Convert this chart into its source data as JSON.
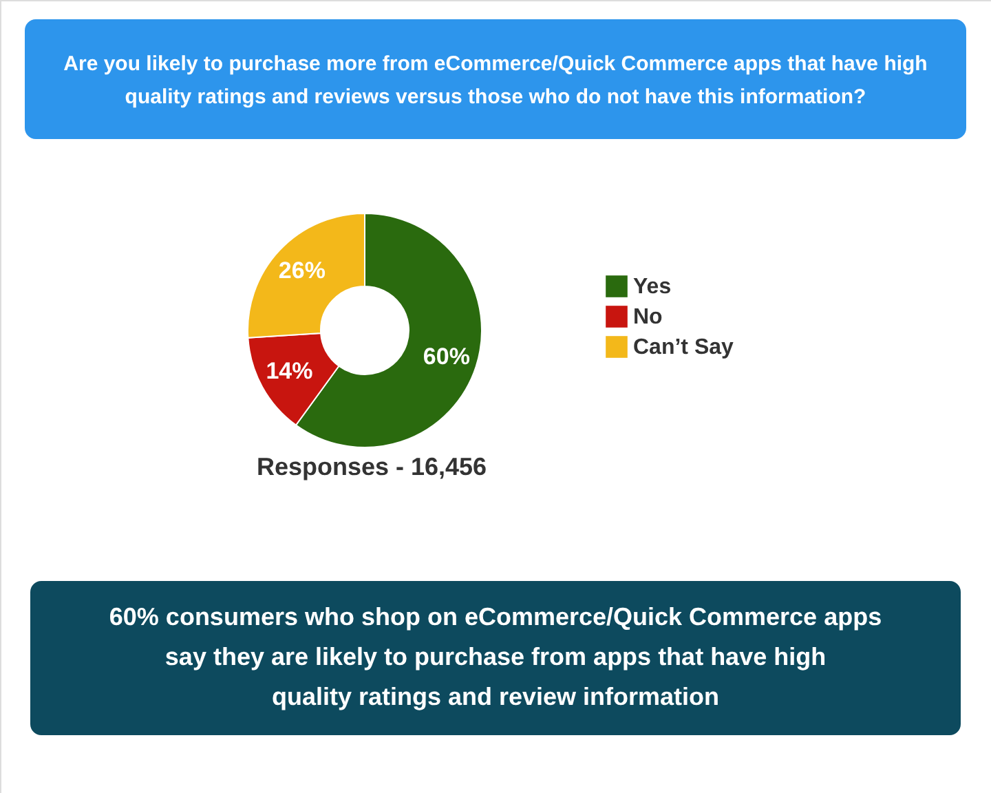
{
  "chart_data": {
    "type": "donut",
    "title": "Are you likely to purchase more from eCommerce/Quick Commerce apps that have high quality ratings and reviews versus those who do not have this information?",
    "categories": [
      "Yes",
      "No",
      "Can’t Say"
    ],
    "values": [
      60,
      14,
      26
    ],
    "value_labels": [
      "60%",
      "14%",
      "26%"
    ],
    "colors": [
      "#2a6a0e",
      "#c8150f",
      "#f3b81a"
    ],
    "legend": "right",
    "annotations": [
      "Responses - 16,456",
      "60% consumers who shop on eCommerce/Quick Commerce apps say they are likely to purchase from apps that have high quality ratings and review information"
    ]
  }
}
